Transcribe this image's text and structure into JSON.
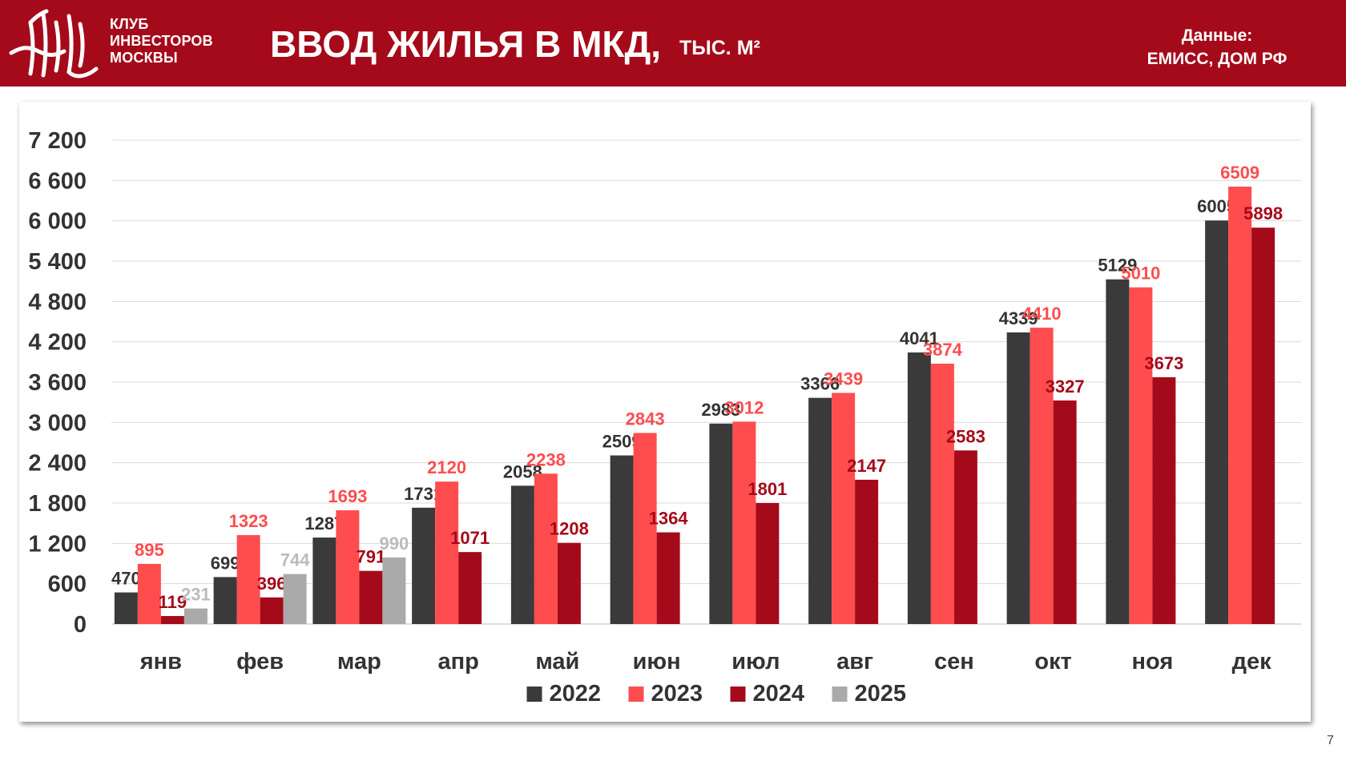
{
  "header": {
    "logo_lines": [
      "КЛУБ",
      "ИНВЕСТОРОВ",
      "МОСКВЫ"
    ],
    "title": "ВВОД ЖИЛЬЯ В МКД,",
    "units": "ТЫС. М²",
    "source_label": "Данные:",
    "source_value": "ЕМИСС, ДОМ РФ"
  },
  "page_number": "7",
  "colors": {
    "header_bg": "#a50a1a",
    "series_2022": "#3a3a3a",
    "series_2023": "#ff4d4f",
    "series_2024": "#a50a1a",
    "series_2025": "#aaaaaa"
  },
  "chart_data": {
    "type": "bar",
    "title": "ВВОД ЖИЛЬЯ В МКД, ТЫС. М²",
    "xlabel": "",
    "ylabel": "",
    "ylim": [
      0,
      7200
    ],
    "yticks": [
      "0",
      "600",
      "1 200",
      "1 800",
      "2 400",
      "3 000",
      "3 600",
      "4 200",
      "4 800",
      "5 400",
      "6 000",
      "6 600",
      "7 200"
    ],
    "ytick_values": [
      0,
      600,
      1200,
      1800,
      2400,
      3000,
      3600,
      4200,
      4800,
      5400,
      6000,
      6600,
      7200
    ],
    "grid": true,
    "legend_position": "bottom",
    "categories": [
      "янв",
      "фев",
      "мар",
      "апр",
      "май",
      "июн",
      "июл",
      "авг",
      "сен",
      "окт",
      "ноя",
      "дек"
    ],
    "series": [
      {
        "name": "2022",
        "color": "#3a3a3a",
        "label_color": "#333333",
        "values": [
          470,
          699,
          1287,
          1731,
          2058,
          2509,
          2983,
          3366,
          4041,
          4339,
          5129,
          6005
        ]
      },
      {
        "name": "2023",
        "color": "#ff4d4f",
        "label_color": "#ff4d4f",
        "values": [
          895,
          1323,
          1693,
          2120,
          2238,
          2843,
          3012,
          3439,
          3874,
          4410,
          5010,
          6509
        ]
      },
      {
        "name": "2024",
        "color": "#a50a1a",
        "label_color": "#a50a1a",
        "values": [
          119,
          396,
          791,
          1071,
          1208,
          1364,
          1801,
          2147,
          2583,
          3327,
          3673,
          5898
        ]
      },
      {
        "name": "2025",
        "color": "#aaaaaa",
        "label_color": "#bbbbbb",
        "values": [
          231,
          744,
          990,
          null,
          null,
          null,
          null,
          null,
          null,
          null,
          null,
          null
        ]
      }
    ]
  }
}
